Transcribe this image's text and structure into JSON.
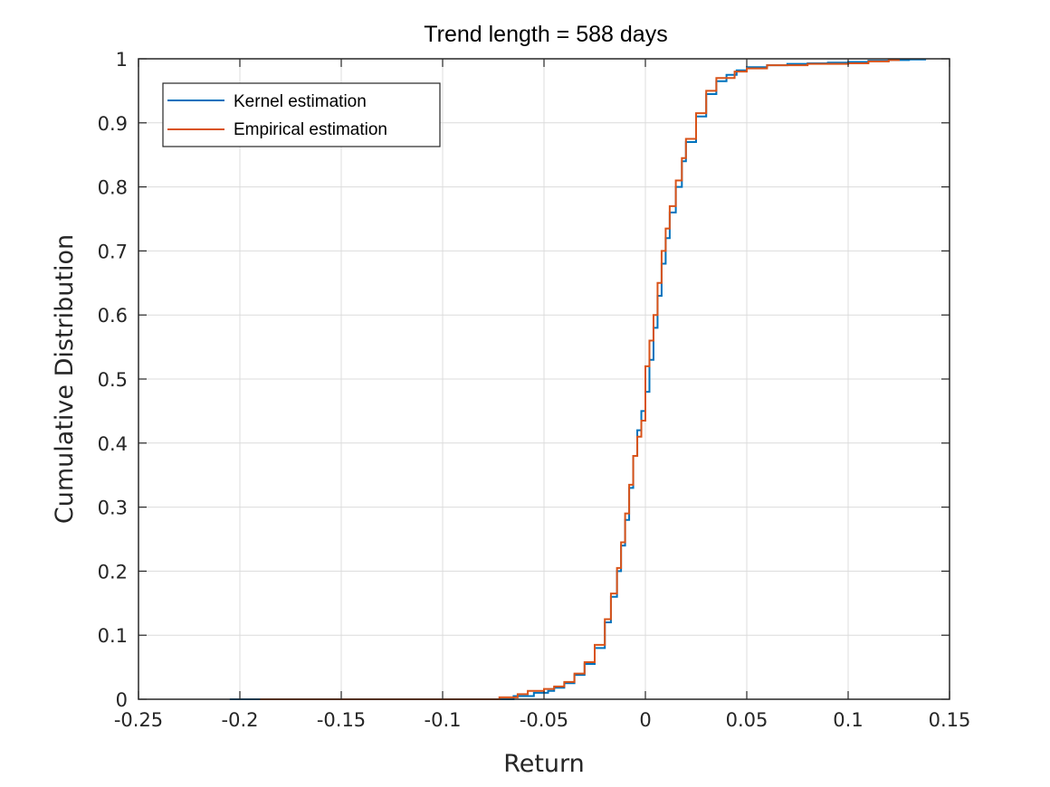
{
  "chart_data": {
    "type": "line",
    "title": "Trend length = 588 days",
    "xlabel": "Return",
    "ylabel": "Cumulative Distribution",
    "xlim": [
      -0.25,
      0.15
    ],
    "ylim": [
      0,
      1
    ],
    "xticks": [
      -0.25,
      -0.2,
      -0.15,
      -0.1,
      -0.05,
      0,
      0.05,
      0.1,
      0.15
    ],
    "xtick_labels": [
      "-0.25",
      "-0.2",
      "-0.15",
      "-0.1",
      "-0.05",
      "0",
      "0.05",
      "0.1",
      "0.15"
    ],
    "yticks": [
      0,
      0.1,
      0.2,
      0.3,
      0.4,
      0.5,
      0.6,
      0.7,
      0.8,
      0.9,
      1
    ],
    "ytick_labels": [
      "0",
      "0.1",
      "0.2",
      "0.3",
      "0.4",
      "0.5",
      "0.6",
      "0.7",
      "0.8",
      "0.9",
      "1"
    ],
    "grid": true,
    "legend_position": "top-left",
    "series": [
      {
        "name": "Kernel estimation",
        "color": "#0072BD",
        "step": true,
        "x": [
          -0.205,
          -0.19,
          -0.07,
          -0.065,
          -0.055,
          -0.048,
          -0.045,
          -0.04,
          -0.035,
          -0.03,
          -0.025,
          -0.02,
          -0.017,
          -0.014,
          -0.012,
          -0.01,
          -0.008,
          -0.006,
          -0.004,
          -0.002,
          0,
          0.002,
          0.004,
          0.006,
          0.008,
          0.01,
          0.012,
          0.015,
          0.018,
          0.02,
          0.025,
          0.03,
          0.035,
          0.04,
          0.045,
          0.05,
          0.06,
          0.07,
          0.08,
          0.09,
          0.1,
          0.11,
          0.12,
          0.13,
          0.138
        ],
        "y": [
          0,
          0,
          0,
          0.005,
          0.01,
          0.013,
          0.018,
          0.025,
          0.038,
          0.055,
          0.08,
          0.12,
          0.16,
          0.2,
          0.24,
          0.28,
          0.33,
          0.38,
          0.42,
          0.45,
          0.48,
          0.53,
          0.58,
          0.63,
          0.68,
          0.72,
          0.76,
          0.8,
          0.84,
          0.87,
          0.91,
          0.945,
          0.965,
          0.975,
          0.982,
          0.987,
          0.99,
          0.992,
          0.993,
          0.994,
          0.995,
          0.997,
          0.998,
          0.999,
          1
        ]
      },
      {
        "name": "Empirical estimation",
        "color": "#D95319",
        "step": true,
        "x": [
          -0.19,
          -0.072,
          -0.063,
          -0.058,
          -0.05,
          -0.045,
          -0.04,
          -0.035,
          -0.03,
          -0.025,
          -0.02,
          -0.017,
          -0.014,
          -0.012,
          -0.01,
          -0.008,
          -0.006,
          -0.004,
          -0.002,
          0,
          0.002,
          0.004,
          0.006,
          0.008,
          0.01,
          0.012,
          0.015,
          0.018,
          0.02,
          0.025,
          0.03,
          0.035,
          0.044,
          0.05,
          0.06,
          0.08,
          0.1,
          0.11,
          0.12,
          0.125
        ],
        "y": [
          0,
          0.003,
          0.008,
          0.013,
          0.016,
          0.02,
          0.027,
          0.04,
          0.058,
          0.085,
          0.125,
          0.165,
          0.205,
          0.245,
          0.29,
          0.335,
          0.38,
          0.41,
          0.435,
          0.52,
          0.56,
          0.6,
          0.65,
          0.7,
          0.735,
          0.77,
          0.81,
          0.845,
          0.875,
          0.915,
          0.95,
          0.97,
          0.98,
          0.985,
          0.99,
          0.992,
          0.993,
          0.996,
          0.998,
          1
        ]
      }
    ]
  }
}
